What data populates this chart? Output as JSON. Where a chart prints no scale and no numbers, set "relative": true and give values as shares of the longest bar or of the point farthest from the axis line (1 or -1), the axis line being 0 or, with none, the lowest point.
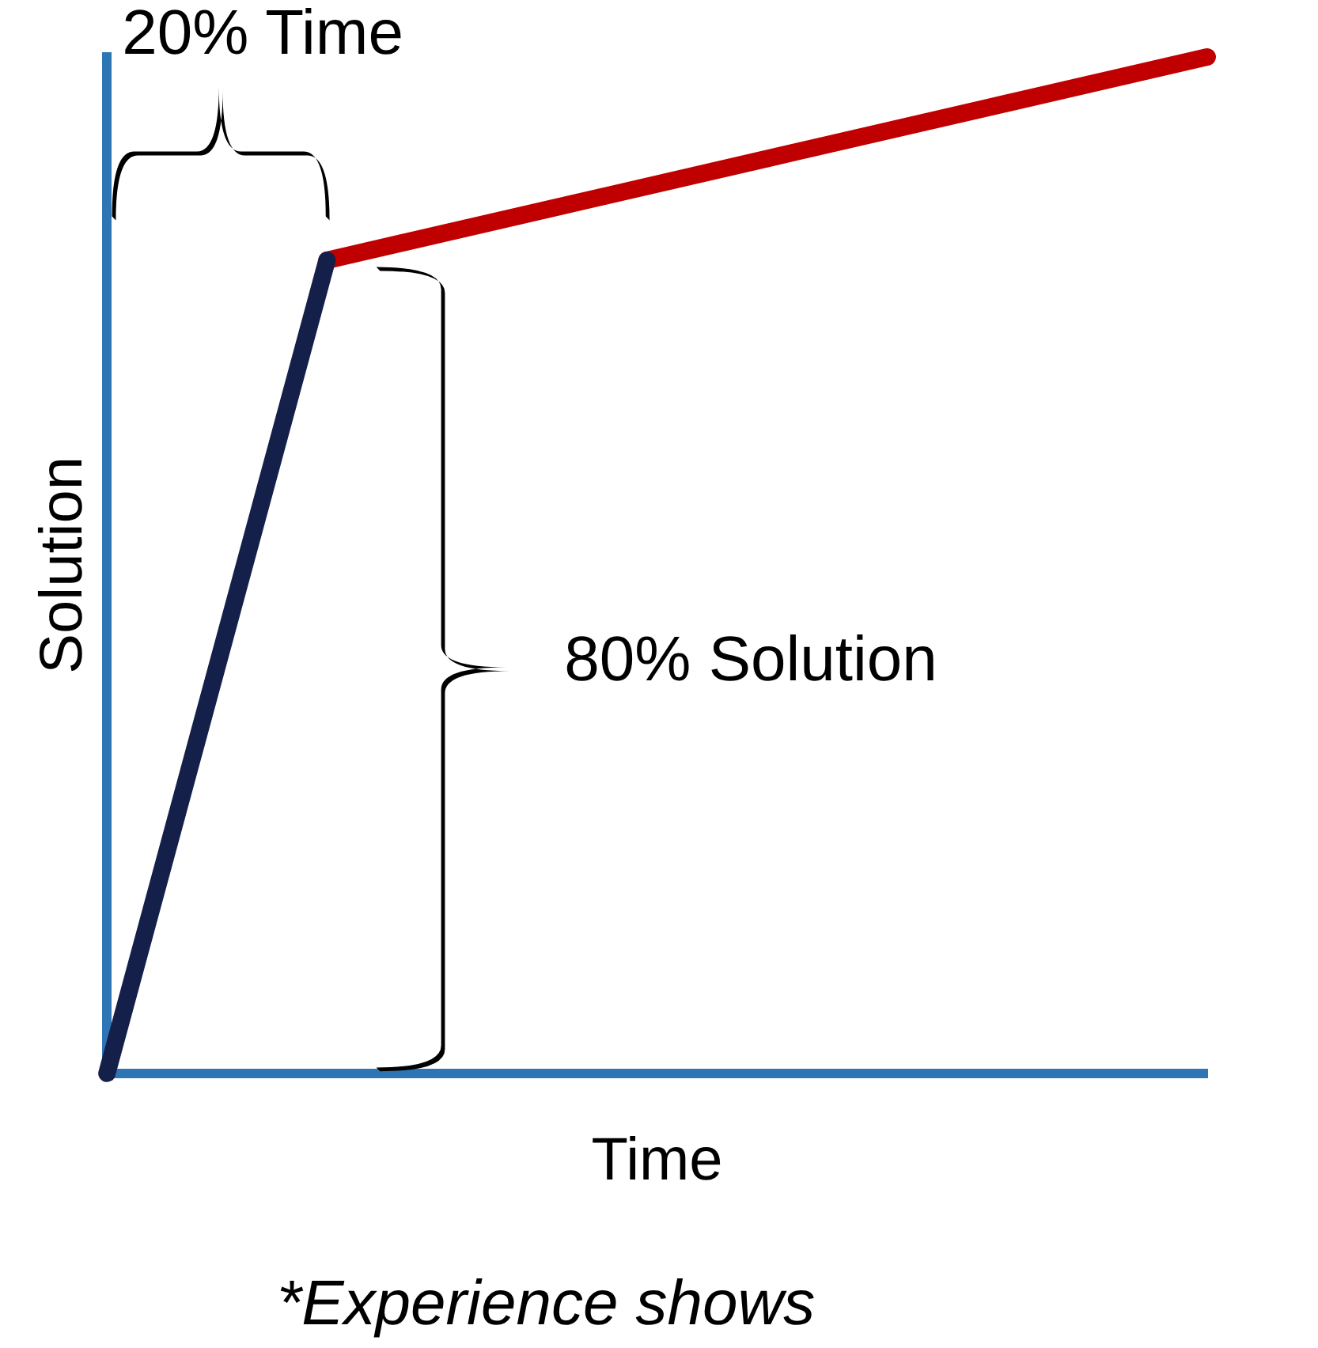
{
  "chart_data": {
    "type": "line",
    "relative": true,
    "xlabel": "Time",
    "ylabel": "Solution",
    "categories": [
      null,
      null,
      null,
      null,
      null,
      null
    ],
    "legend": false,
    "marker": "none",
    "line_style": "solid",
    "series": [
      {
        "color": "#14204a",
        "values": [
          0,
          0.8,
          null,
          null,
          null,
          null
        ]
      },
      {
        "color": "#c00000",
        "values": [
          null,
          0.8,
          0.85,
          0.9,
          0.95,
          1
        ]
      }
    ],
    "annotations": [
      "20% Time",
      "80% Solution",
      "*Experience shows"
    ]
  }
}
